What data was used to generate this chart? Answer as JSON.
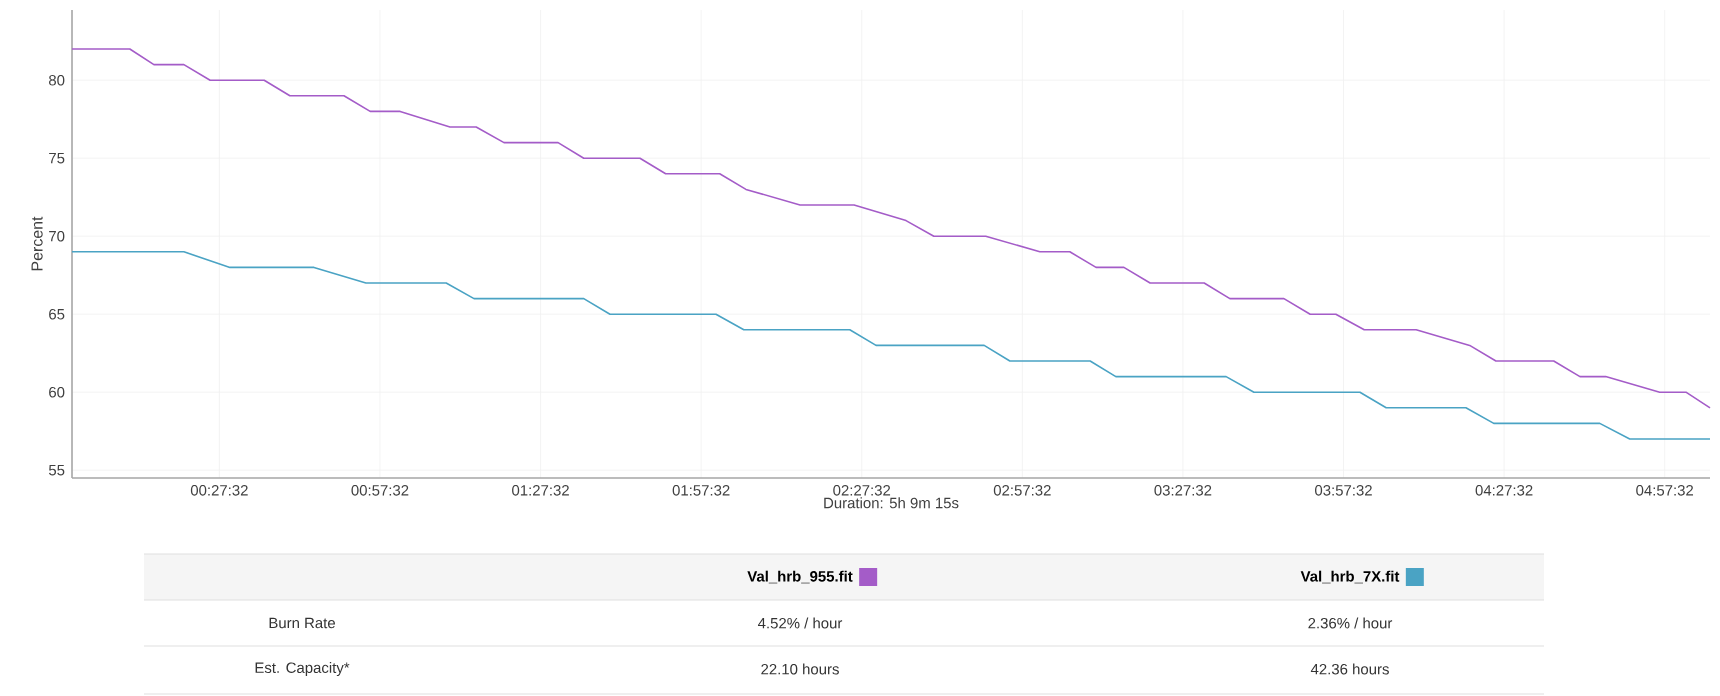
{
  "chart_data": {
    "type": "line",
    "xlabel": "Duration: 5h 9m 15s",
    "ylabel": "Percent",
    "xlim": [
      0,
      306
    ],
    "ylim": [
      54.5,
      84.5
    ],
    "xticks": [
      {
        "value": 27.53,
        "label": "00:27:32"
      },
      {
        "value": 57.53,
        "label": "00:57:32"
      },
      {
        "value": 87.53,
        "label": "01:27:32"
      },
      {
        "value": 117.53,
        "label": "01:57:32"
      },
      {
        "value": 147.53,
        "label": "02:27:32"
      },
      {
        "value": 177.53,
        "label": "02:57:32"
      },
      {
        "value": 207.53,
        "label": "03:27:32"
      },
      {
        "value": 237.53,
        "label": "03:57:32"
      },
      {
        "value": 267.53,
        "label": "04:27:32"
      },
      {
        "value": 297.53,
        "label": "04:57:32"
      }
    ],
    "yticks": [
      55,
      60,
      65,
      70,
      75,
      80
    ],
    "grid": true,
    "legend": "bottom",
    "marker": "none",
    "line_style": "solid",
    "series": [
      {
        "name": "Val_hrb_955.fit",
        "color": "#a45cc8",
        "x": [
          0,
          10.8,
          15.3,
          20.9,
          25.8,
          35.9,
          40.7,
          50.8,
          55.7,
          61.3,
          70.6,
          75.5,
          80.7,
          90.8,
          95.6,
          106.1,
          110.9,
          121.0,
          125.9,
          136.0,
          146.1,
          155.8,
          161.0,
          170.7,
          180.8,
          186.4,
          191.3,
          196.5,
          201.4,
          211.5,
          216.3,
          226.4,
          231.3,
          236.1,
          241.4,
          251.1,
          261.1,
          266.0,
          276.8,
          281.7,
          286.5,
          296.6,
          301.5,
          306
        ],
        "values": [
          82,
          82,
          81,
          81,
          80,
          80,
          79,
          79,
          78,
          78,
          77,
          77,
          76,
          76,
          75,
          75,
          74,
          74,
          73,
          72,
          72,
          71,
          70,
          70,
          69,
          69,
          68,
          68,
          67,
          67,
          66,
          66,
          65,
          65,
          64,
          64,
          63,
          62,
          62,
          61,
          61,
          60,
          60,
          59
        ]
      },
      {
        "name": "Val_hrb_7X.fit",
        "color": "#4aa3c4",
        "x": [
          0,
          20.9,
          29.5,
          45.2,
          54.9,
          69.9,
          75.1,
          95.6,
          100.5,
          120.3,
          125.5,
          145.3,
          150.2,
          170.4,
          175.2,
          190.2,
          195.0,
          215.6,
          220.8,
          240.6,
          245.5,
          260.4,
          265.6,
          285.4,
          291.0,
          306
        ],
        "values": [
          69,
          69,
          68,
          68,
          67,
          67,
          66,
          66,
          65,
          65,
          64,
          64,
          63,
          63,
          62,
          62,
          61,
          61,
          60,
          60,
          59,
          59,
          58,
          58,
          57,
          57
        ]
      }
    ],
    "annotations": [
      "Burn Rate",
      "4.52% / hour",
      "2.36% / hour",
      "Est. Capacity*",
      "22.10 hours",
      "42.36 hours"
    ]
  }
}
